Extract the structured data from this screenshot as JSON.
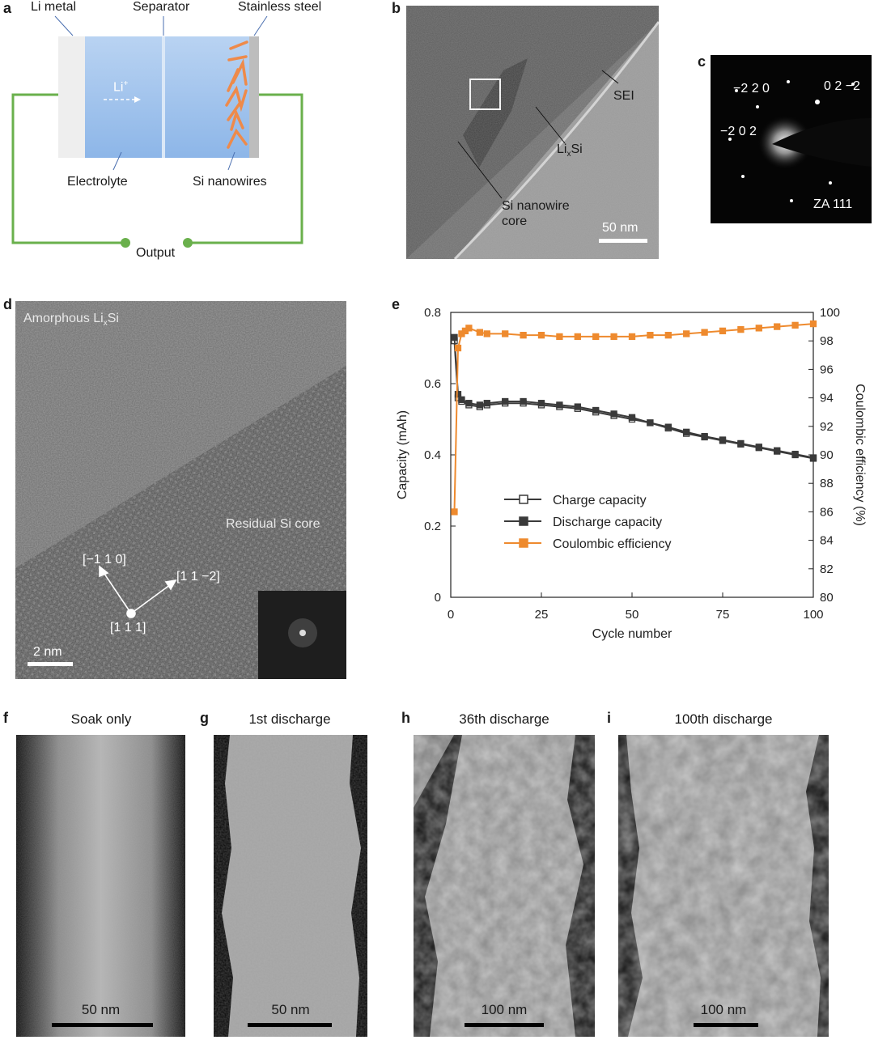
{
  "panel_letters": {
    "a": "a",
    "b": "b",
    "c": "c",
    "d": "d",
    "e": "e",
    "f": "f",
    "g": "g",
    "h": "h",
    "i": "i"
  },
  "panel_a": {
    "li_metal": "Li metal",
    "separator": "Separator",
    "stainless_steel": "Stainless steel",
    "li_ion": "Li",
    "li_ion_sup": "+",
    "electrolyte": "Electrolyte",
    "si_nanowires": "Si nanowires",
    "output": "Output",
    "colors": {
      "electrolyte": "#a9c8ee",
      "wire": "#6ab04c",
      "nanowire": "#ee8a4a",
      "steel": "#bdbdbd",
      "li_metal": "#eeeeee"
    }
  },
  "panel_b": {
    "sei": "SEI",
    "lixsi_main": "Li",
    "lixsi_sub": "x",
    "lixsi_end": "Si",
    "core_line1": "Si nanowire",
    "core_line2": "core",
    "scalebar": "50 nm"
  },
  "panel_c": {
    "spot1": "−2 2 0",
    "spot2": "0 2 −2",
    "spot3": "−2 0 2",
    "zone_axis": "ZA 111"
  },
  "panel_d": {
    "amorphous_main": "Amorphous Li",
    "amorphous_sub": "x",
    "amorphous_end": "Si",
    "residual": "Residual Si core",
    "dir1": "[−1 1 0]",
    "dir2": "[1 1 −2]",
    "dir3": "[1 1 1]",
    "scalebar": "2 nm"
  },
  "panel_e": {
    "chart_data": {
      "type": "line",
      "xlabel": "Cycle number",
      "ylabel": "Capacity (mAh)",
      "y2label": "Coulombic efficiency (%)",
      "xlim": [
        0,
        100
      ],
      "ylim": [
        0,
        0.8
      ],
      "y2lim": [
        80,
        100
      ],
      "xticks": [
        0,
        25,
        50,
        75,
        100
      ],
      "yticks": [
        0,
        0.2,
        0.4,
        0.6,
        0.8
      ],
      "y2ticks": [
        80,
        82,
        84,
        86,
        88,
        90,
        92,
        94,
        96,
        98,
        100
      ],
      "legend_position": "center",
      "series": [
        {
          "name": "Charge capacity",
          "axis": "left",
          "color": "#3a3a3a",
          "marker": "open-square",
          "x": [
            1,
            2,
            3,
            5,
            8,
            10,
            15,
            20,
            25,
            30,
            35,
            40,
            45,
            50,
            55,
            60,
            65,
            70,
            75,
            80,
            85,
            90,
            95,
            100
          ],
          "y": [
            0.72,
            0.56,
            0.55,
            0.54,
            0.535,
            0.54,
            0.545,
            0.545,
            0.54,
            0.535,
            0.53,
            0.52,
            0.51,
            0.5,
            0.49,
            0.475,
            0.46,
            0.45,
            0.44,
            0.43,
            0.42,
            0.41,
            0.4,
            0.39
          ]
        },
        {
          "name": "Discharge capacity",
          "axis": "left",
          "color": "#3a3a3a",
          "marker": "filled-square",
          "x": [
            1,
            2,
            3,
            5,
            8,
            10,
            15,
            20,
            25,
            30,
            35,
            40,
            45,
            50,
            55,
            60,
            65,
            70,
            75,
            80,
            85,
            90,
            95,
            100
          ],
          "y": [
            0.73,
            0.57,
            0.555,
            0.545,
            0.54,
            0.545,
            0.55,
            0.55,
            0.545,
            0.54,
            0.535,
            0.525,
            0.515,
            0.505,
            0.49,
            0.478,
            0.464,
            0.452,
            0.442,
            0.432,
            0.422,
            0.412,
            0.402,
            0.392
          ]
        },
        {
          "name": "Coulombic efficiency",
          "axis": "right",
          "color": "#ee8a2e",
          "marker": "filled-square",
          "x": [
            1,
            2,
            3,
            4,
            5,
            8,
            10,
            15,
            20,
            25,
            30,
            35,
            40,
            45,
            50,
            55,
            60,
            65,
            70,
            75,
            80,
            85,
            90,
            95,
            100
          ],
          "y": [
            86,
            97.5,
            98.5,
            98.7,
            98.9,
            98.6,
            98.5,
            98.5,
            98.4,
            98.4,
            98.3,
            98.3,
            98.3,
            98.3,
            98.3,
            98.4,
            98.4,
            98.5,
            98.6,
            98.7,
            98.8,
            98.9,
            99.0,
            99.1,
            99.2
          ]
        }
      ]
    }
  },
  "panel_f": {
    "title": "Soak only",
    "scalebar": "50 nm"
  },
  "panel_g": {
    "title": "1st discharge",
    "scalebar": "50 nm"
  },
  "panel_h": {
    "title": "36th discharge",
    "scalebar": "100 nm"
  },
  "panel_i": {
    "title": "100th discharge",
    "scalebar": "100 nm"
  }
}
